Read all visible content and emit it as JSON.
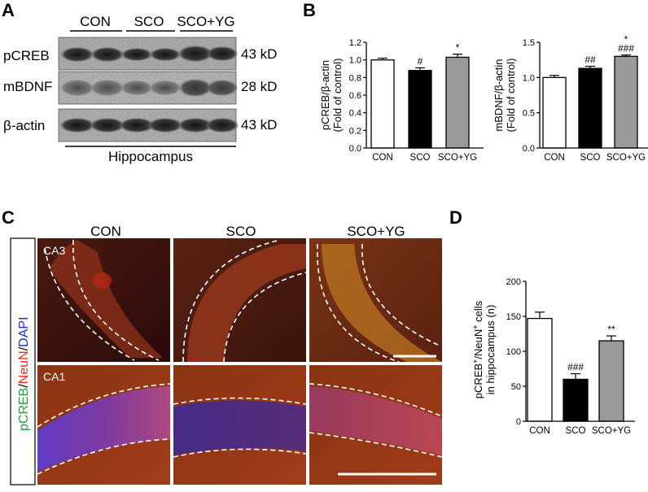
{
  "panels": {
    "A": "A",
    "B": "B",
    "C": "C",
    "D": "D"
  },
  "western_blot": {
    "groups": [
      "CON",
      "SCO",
      "SCO+YG"
    ],
    "rows": [
      {
        "name": "pCREB",
        "size": "43 kD"
      },
      {
        "name": "mBDNF",
        "size": "28 kD"
      },
      {
        "name": "β-actin",
        "size": "43 kD"
      }
    ],
    "tissue": "Hippocampus"
  },
  "micrographs": {
    "columns": [
      "CON",
      "SCO",
      "SCO+YG"
    ],
    "rows": [
      "CA3",
      "CA1"
    ],
    "stain": {
      "part1": "pCREB",
      "sep1": "/",
      "part2": "NeuN",
      "sep2": "/",
      "part3": "DAPI"
    },
    "colors": {
      "pcreb": "#20a040",
      "neun": "#e03020",
      "dapi": "#2030c0"
    }
  },
  "chart_data": [
    {
      "type": "bar",
      "categories": [
        "CON",
        "SCO",
        "SCO+YG"
      ],
      "values": [
        1.0,
        0.88,
        1.03
      ],
      "errors": [
        0.02,
        0.03,
        0.035
      ],
      "significance": [
        "",
        "#",
        "*"
      ],
      "ylabel_line1": "pCREB/β-actin",
      "ylabel_line2": "(Fold of control)",
      "ylim": [
        0,
        1.2
      ],
      "yticks": [
        "0.0",
        "0.2",
        "0.4",
        "0.6",
        "0.8",
        "1.0",
        "1.2"
      ],
      "colors": [
        "#ffffff",
        "#000000",
        "#9a9a9a"
      ]
    },
    {
      "type": "bar",
      "categories": [
        "CON",
        "SCO",
        "SCO+YG"
      ],
      "values": [
        1.0,
        1.13,
        1.3
      ],
      "errors": [
        0.03,
        0.03,
        0.02
      ],
      "significance": [
        "",
        "##",
        "###"
      ],
      "significance_top": [
        "",
        "",
        "*"
      ],
      "ylabel_line1": "mBDNF/β-actin",
      "ylabel_line2": "(Fold of control)",
      "ylim": [
        0,
        1.5
      ],
      "yticks": [
        "0.0",
        "0.5",
        "1.0",
        "1.5"
      ],
      "colors": [
        "#ffffff",
        "#000000",
        "#9a9a9a"
      ]
    },
    {
      "type": "bar",
      "categories": [
        "CON",
        "SCO",
        "SCO+YG"
      ],
      "values": [
        147,
        60,
        115
      ],
      "errors": [
        9,
        8,
        7
      ],
      "significance": [
        "",
        "###",
        "**"
      ],
      "ylabel_line1": "pCREB",
      "ylabel_sup1": "+",
      "ylabel_mid": "/NeuN",
      "ylabel_sup2": "+",
      "ylabel_end": " cells",
      "ylabel_line2": "in hippocampus (n)",
      "ylim": [
        0,
        200
      ],
      "yticks": [
        "0",
        "50",
        "100",
        "150",
        "200"
      ],
      "colors": [
        "#ffffff",
        "#000000",
        "#9a9a9a"
      ]
    }
  ]
}
